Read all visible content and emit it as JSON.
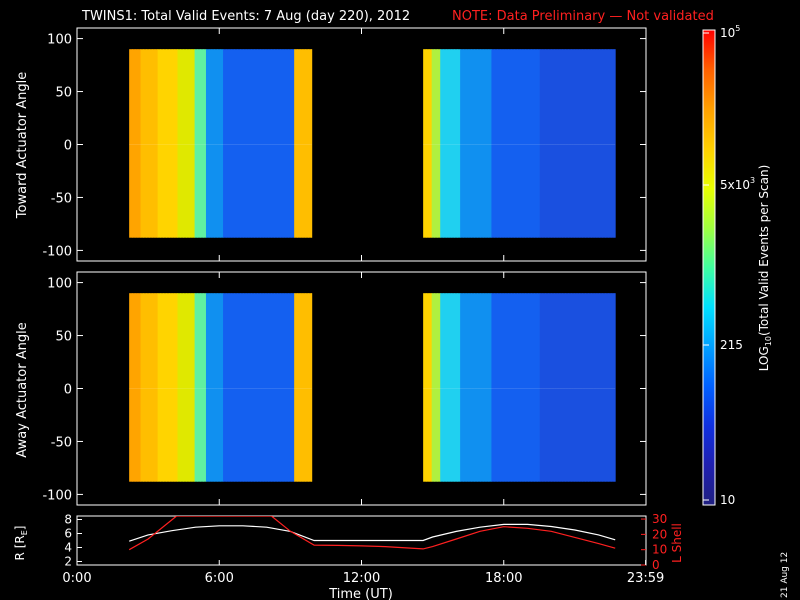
{
  "chart_data": [
    {
      "type": "heatmap",
      "panel": "toward",
      "title": "TWINS1: Total Valid Events:  7 Aug (day 220), 2012",
      "note": "NOTE: Data Preliminary — Not validated",
      "ylabel": "Toward Actuator Angle",
      "ylim": [
        -110,
        110
      ],
      "yticks": [
        "100",
        "50",
        "0",
        "-50",
        "-100"
      ],
      "xlim_hours": [
        0,
        24
      ],
      "data_segments": [
        {
          "start_hour": 2.2,
          "end_hour": 9.9,
          "angle_range": [
            -88,
            90
          ]
        },
        {
          "start_hour": 14.6,
          "end_hour": 22.7,
          "angle_range": [
            -88,
            90
          ]
        }
      ]
    },
    {
      "type": "heatmap",
      "panel": "away",
      "ylabel": "Away Actuator Angle",
      "ylim": [
        -110,
        110
      ],
      "yticks": [
        "100",
        "50",
        "0",
        "-50",
        "-100"
      ],
      "xlim_hours": [
        0,
        24
      ],
      "data_segments": [
        {
          "start_hour": 2.2,
          "end_hour": 9.9,
          "angle_range": [
            -88,
            90
          ]
        },
        {
          "start_hour": 14.6,
          "end_hour": 22.7,
          "angle_range": [
            -88,
            90
          ]
        }
      ]
    },
    {
      "type": "line",
      "panel": "orbit",
      "ylabel_left": "R [R",
      "ylabel_left_sub": "E",
      "ylabel_left_end": "]",
      "ylabel_right": "L Shell",
      "yticks_left": [
        "8",
        "6",
        "4",
        "2"
      ],
      "yticks_right": [
        "30",
        "20",
        "10",
        "0"
      ],
      "ylim_left": [
        1.5,
        8.5
      ],
      "ylim_right": [
        0,
        32
      ],
      "xlabel": "Time (UT)",
      "xticks": [
        "0:00",
        "6:00",
        "12:00",
        "18:00",
        "23:59"
      ],
      "series": [
        {
          "axis": "left",
          "color": "#ffffff",
          "x": [
            2.2,
            3,
            4,
            5,
            6,
            7,
            8,
            9,
            10,
            11,
            12,
            13,
            14.6,
            15,
            16,
            17,
            18,
            19,
            20,
            21,
            22,
            22.7
          ],
          "y": [
            4.9,
            5.8,
            6.4,
            6.9,
            7.1,
            7.1,
            6.9,
            6.3,
            5.0,
            5.0,
            5.0,
            5.0,
            5.0,
            5.5,
            6.3,
            6.9,
            7.3,
            7.3,
            7.0,
            6.5,
            5.8,
            5.1
          ]
        },
        {
          "axis": "right",
          "color": "#ff2020",
          "x": [
            2.2,
            3,
            4.2,
            8.2,
            9,
            10,
            11,
            12,
            13,
            14.6,
            15,
            16,
            17,
            18,
            19,
            20,
            21,
            22,
            22.7
          ],
          "y": [
            10,
            17,
            32,
            32,
            22,
            13,
            12.8,
            12.5,
            12,
            10.5,
            12,
            17,
            22,
            25,
            24,
            22,
            18,
            14,
            11
          ]
        }
      ]
    }
  ],
  "colorbar": {
    "ticks": [
      {
        "base": "10",
        "exp": "5"
      },
      {
        "base": "5x10",
        "exp": "3"
      },
      {
        "base": "215",
        "exp": ""
      },
      {
        "base": "10",
        "exp": ""
      }
    ],
    "label_pre": "LOG",
    "label_sub": "10",
    "label_post": "(Total Valid Events per Scan)",
    "colors": [
      "#ff0000",
      "#ff6000",
      "#ffa000",
      "#ffd000",
      "#e8ff00",
      "#a0ff40",
      "#40ffa0",
      "#00e0ff",
      "#00a0ff",
      "#0060ff",
      "#1030e0",
      "#2020b0",
      "#202080"
    ]
  },
  "date_stamp": "21 Aug 12",
  "profile": {
    "colors": [
      "#ff8c00",
      "#ffa400",
      "#ffbe00",
      "#ffd400",
      "#e0e800",
      "#b0f040",
      "#60f0a0",
      "#20d0f0",
      "#1090f0",
      "#1070ff",
      "#1460f0",
      "#1a50e0",
      "#1848d8"
    ]
  }
}
